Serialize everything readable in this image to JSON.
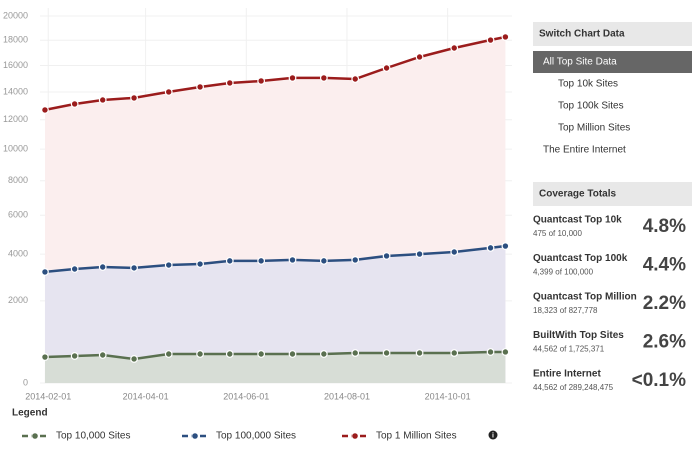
{
  "chart_data": {
    "type": "area-line",
    "x": [
      "2014-01-30",
      "2014-02-17",
      "2014-03-06",
      "2014-03-25",
      "2014-04-15",
      "2014-05-04",
      "2014-05-22",
      "2014-06-10",
      "2014-06-29",
      "2014-07-18",
      "2014-08-06",
      "2014-08-25",
      "2014-09-14",
      "2014-10-05",
      "2014-10-27",
      "2014-11-05"
    ],
    "series": [
      {
        "name": "Top 1 Million Sites",
        "color": "#9b1c1c",
        "fill": "#fbeeee",
        "values": [
          12690,
          13120,
          13410,
          13560,
          14000,
          14370,
          14670,
          14820,
          15050,
          15050,
          14970,
          15810,
          16670,
          17380,
          18020,
          18270
        ]
      },
      {
        "name": "Top 100,000 Sites",
        "color": "#2c4f80",
        "fill": "#e6e4f0",
        "values": [
          3180,
          3310,
          3400,
          3360,
          3490,
          3535,
          3680,
          3680,
          3725,
          3680,
          3725,
          3910,
          4000,
          4100,
          4300,
          4390
        ]
      },
      {
        "name": "Top 10,000 Sites",
        "color": "#5a7050",
        "fill": "#d7ddd6",
        "values": [
          340,
          362,
          382,
          302,
          403,
          403,
          403,
          403,
          403,
          403,
          425,
          425,
          425,
          425,
          447,
          447
        ]
      }
    ],
    "xlim": [
      "2014-01-27",
      "2014-11-09"
    ],
    "xticks": [
      "2014-02-01",
      "2014-04-01",
      "2014-06-01",
      "2014-08-01",
      "2014-10-01"
    ],
    "ylim": [
      0,
      20000
    ],
    "yticks": [
      0,
      2000,
      4000,
      6000,
      8000,
      10000,
      12000,
      14000,
      16000,
      18000,
      20000
    ],
    "yscale": "pow",
    "yscale_exponent": 0.65,
    "legend_title": "Legend",
    "legend_order": [
      2,
      1,
      0
    ]
  },
  "sidebar": {
    "switch_title": "Switch Chart Data",
    "options": [
      "All Top Site Data",
      "Top 10k Sites",
      "Top 100k Sites",
      "Top Million Sites",
      "The Entire Internet"
    ],
    "coverage_title": "Coverage Totals",
    "coverage": [
      {
        "name": "Quantcast Top 10k",
        "detail": "475 of 10,000",
        "percent": "4.8%"
      },
      {
        "name": "Quantcast Top 100k",
        "detail": "4,399 of 100,000",
        "percent": "4.4%"
      },
      {
        "name": "Quantcast Top Million",
        "detail": "18,323 of 827,778",
        "percent": "2.2%"
      },
      {
        "name": "BuiltWith Top Sites",
        "detail": "44,562 of 1,725,371",
        "percent": "2.6%"
      },
      {
        "name": "Entire Internet",
        "detail": "44,562 of 289,248,475",
        "percent": "<0.1%"
      }
    ]
  }
}
